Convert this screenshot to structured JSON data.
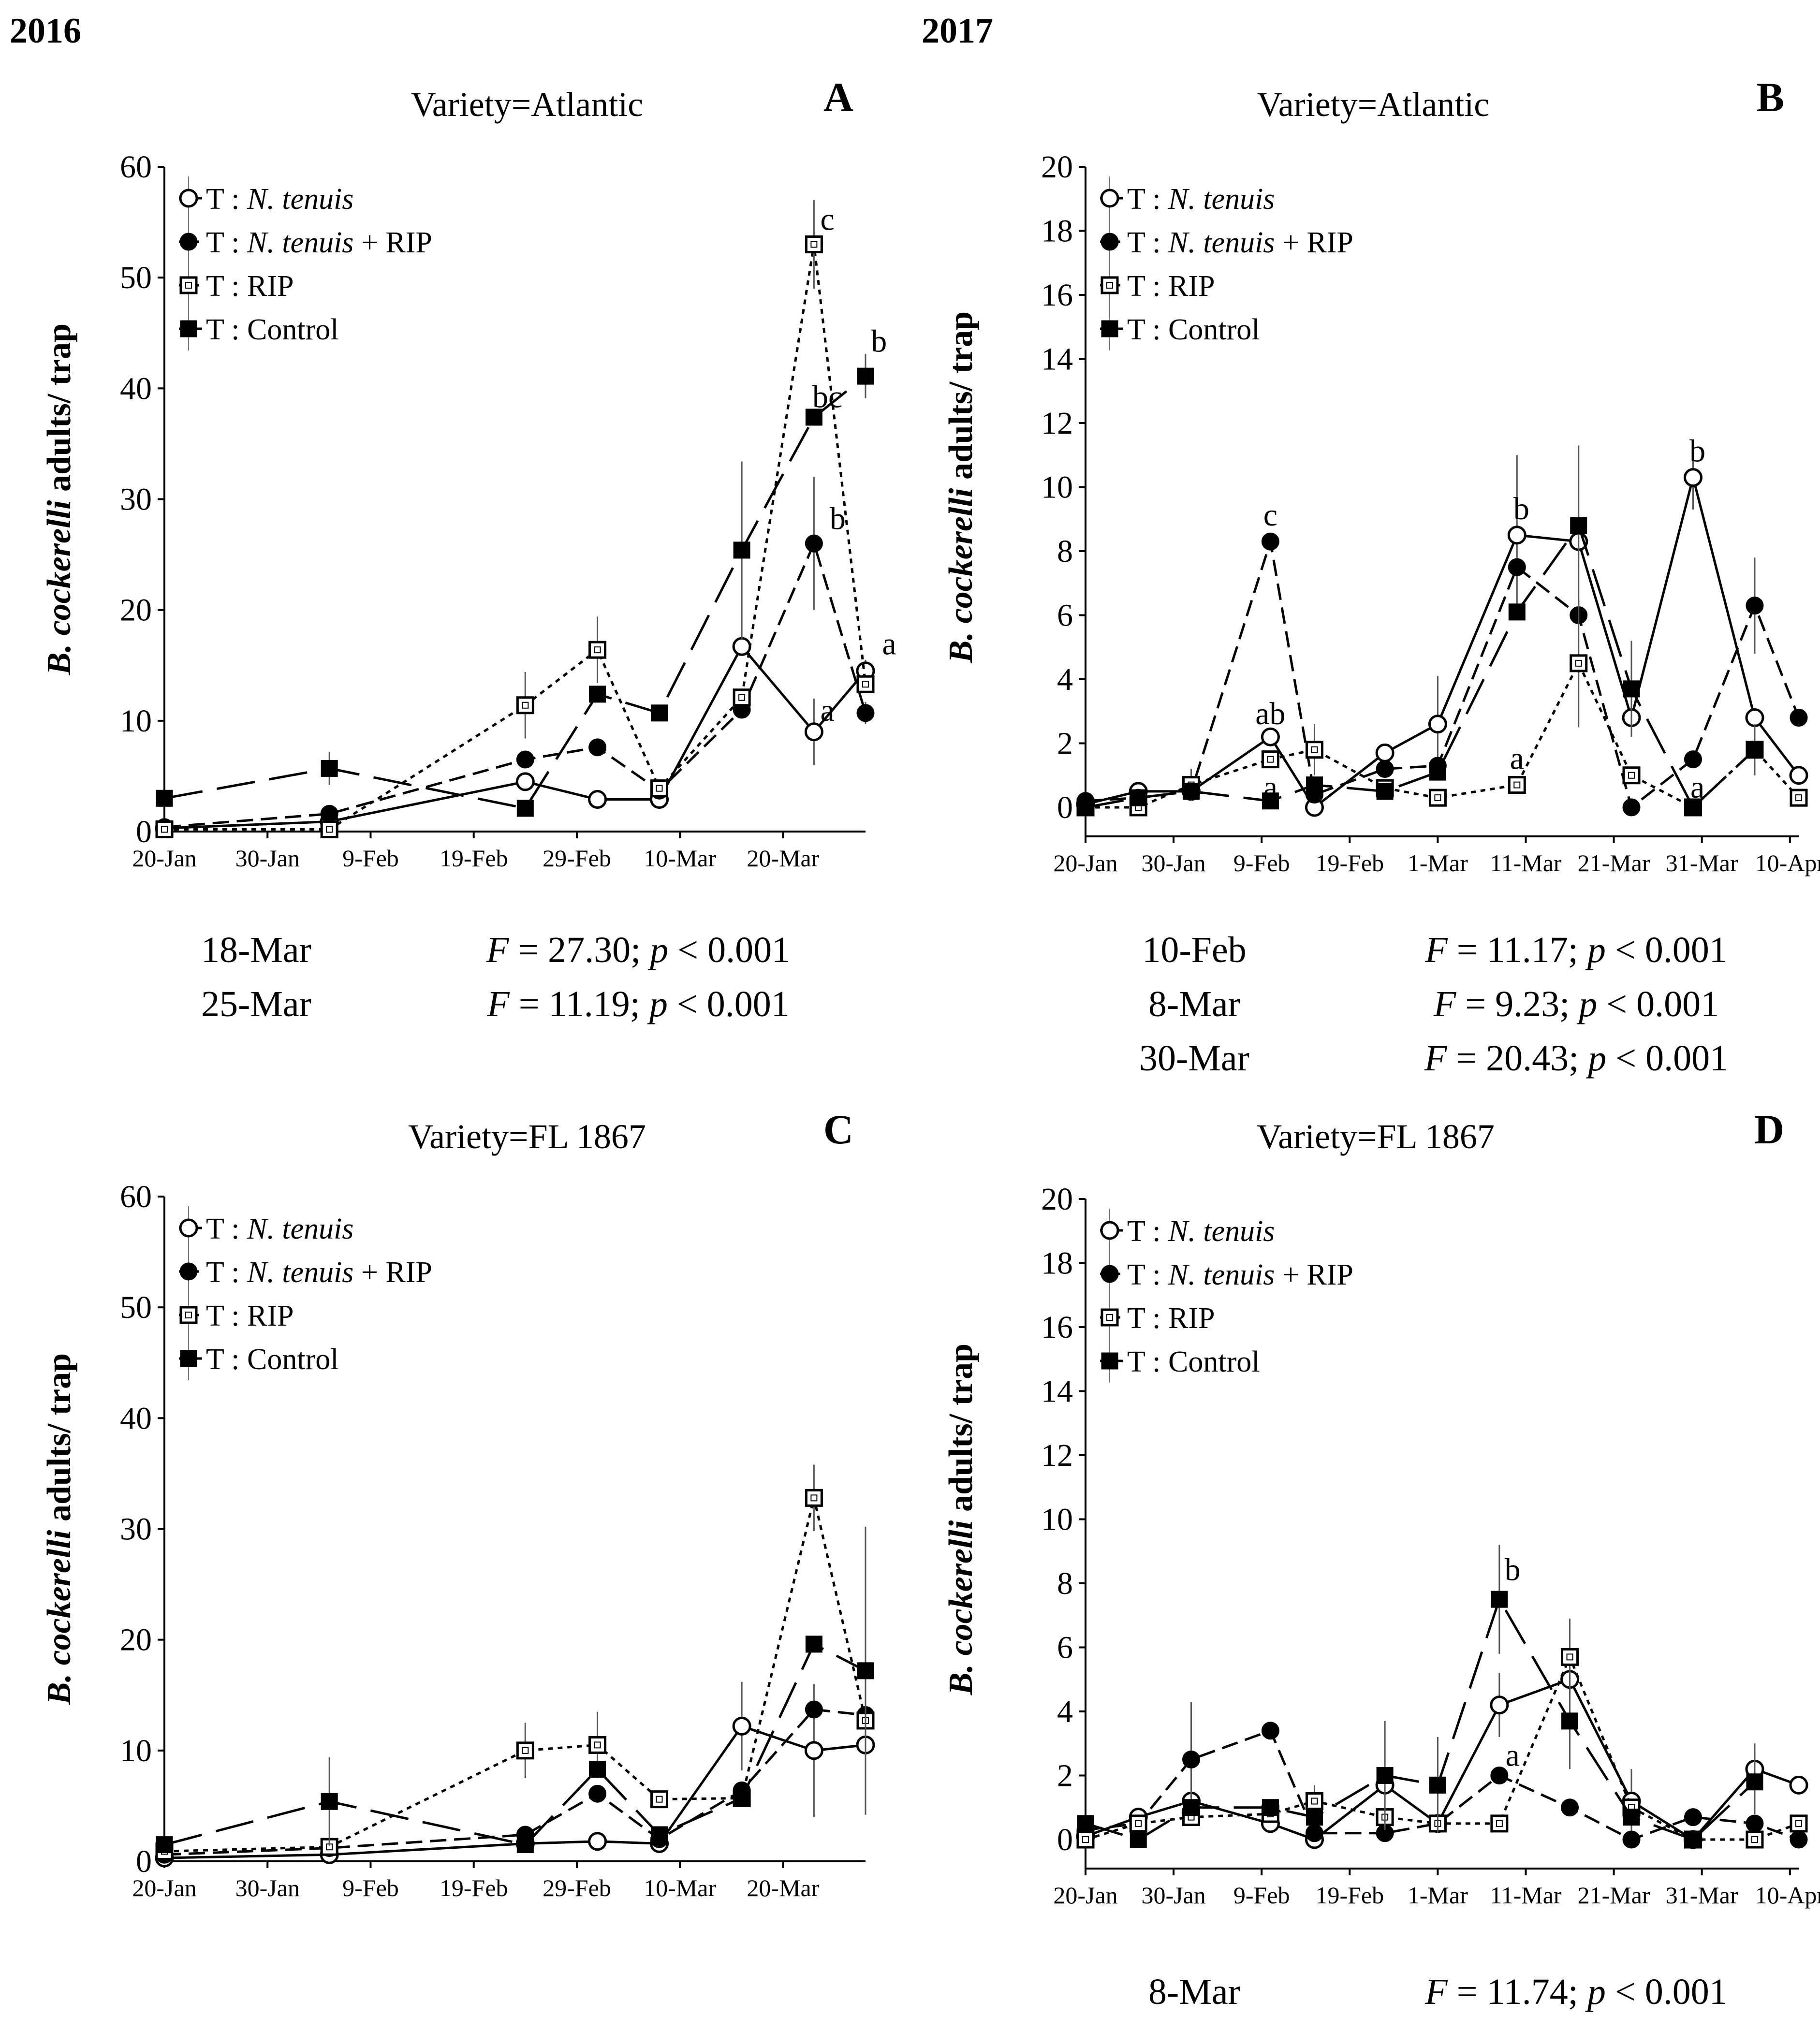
{
  "years": [
    "2016",
    "2017"
  ],
  "y_axis_label": {
    "italic": "B. cockerelli",
    "rest": " adults/ trap"
  },
  "legend": {
    "prefix": "T",
    "entries": [
      {
        "label": "N. tenuis",
        "suffix": ""
      },
      {
        "label": "N. tenuis",
        "suffix": " + RIP"
      },
      {
        "label": "",
        "suffix": "RIP"
      },
      {
        "label": "",
        "suffix": "Control"
      }
    ]
  },
  "chart_data": [
    {
      "panel": "A",
      "type": "line",
      "title": "Variety=Atlantic",
      "year": "2016",
      "ylim": [
        0,
        60
      ],
      "yticks": [
        0,
        10,
        20,
        30,
        40,
        50,
        60
      ],
      "xlim": [
        0,
        68
      ],
      "xticks": [
        {
          "x": 0,
          "label": "20-Jan"
        },
        {
          "x": 10,
          "label": "30-Jan"
        },
        {
          "x": 20,
          "label": "9-Feb"
        },
        {
          "x": 30,
          "label": "19-Feb"
        },
        {
          "x": 40,
          "label": "29-Feb"
        },
        {
          "x": 50,
          "label": "10-Mar"
        },
        {
          "x": 60,
          "label": "20-Mar"
        }
      ],
      "series": [
        {
          "name": "T: N. tenuis",
          "style": "open-circle",
          "x": [
            0,
            16,
            35,
            42,
            48,
            56,
            63,
            68
          ],
          "y": [
            0.3,
            0.9,
            4.5,
            2.9,
            2.9,
            16.7,
            9.0,
            14.5
          ],
          "err": [
            0,
            0,
            0,
            0,
            0,
            0,
            3,
            1
          ]
        },
        {
          "name": "T: N. tenuis + RIP",
          "style": "filled-circle",
          "x": [
            0,
            16,
            35,
            42,
            48,
            56,
            63,
            68
          ],
          "y": [
            0.4,
            1.6,
            6.5,
            7.6,
            3.7,
            11.0,
            26.0,
            10.7
          ],
          "err": [
            0,
            0,
            0,
            0,
            0,
            0,
            6,
            1
          ]
        },
        {
          "name": "T: RIP",
          "style": "open-square",
          "x": [
            0,
            16,
            35,
            42,
            48,
            56,
            63,
            68
          ],
          "y": [
            0.2,
            0.2,
            11.4,
            16.4,
            3.9,
            12.1,
            53.0,
            13.3
          ],
          "err": [
            0,
            0,
            3,
            3,
            0,
            0,
            4,
            0
          ]
        },
        {
          "name": "T: Control",
          "style": "filled-square",
          "x": [
            0,
            16,
            35,
            42,
            48,
            56,
            63,
            68
          ],
          "y": [
            3.0,
            5.7,
            2.1,
            12.4,
            10.7,
            25.4,
            37.4,
            41.1
          ],
          "err": [
            0,
            1.5,
            0,
            0,
            0,
            8,
            0,
            2
          ]
        }
      ],
      "annotations": [
        {
          "text": "c",
          "x": 64.3,
          "y": 54.3
        },
        {
          "text": "b",
          "x": 69.3,
          "y": 43.3
        },
        {
          "text": "bc",
          "x": 64.3,
          "y": 38.3
        },
        {
          "text": "b",
          "x": 65.3,
          "y": 27.3
        },
        {
          "text": "a",
          "x": 70.3,
          "y": 16.0
        },
        {
          "text": "a",
          "x": 64.3,
          "y": 10.0
        }
      ],
      "stats": [
        {
          "date": "18-Mar",
          "F": "27.30",
          "p": "0.001"
        },
        {
          "date": "25-Mar",
          "F": "11.19",
          "p": "0.001"
        }
      ]
    },
    {
      "panel": "B",
      "type": "line",
      "title": "Variety=Atlantic",
      "year": "2017",
      "ylim": [
        0,
        20
      ],
      "yticks": [
        0,
        2,
        4,
        6,
        8,
        10,
        12,
        14,
        16,
        18,
        20
      ],
      "xlim": [
        0,
        81
      ],
      "xticks": [
        {
          "x": 0,
          "label": "20-Jan"
        },
        {
          "x": 10,
          "label": "30-Jan"
        },
        {
          "x": 20,
          "label": "9-Feb"
        },
        {
          "x": 30,
          "label": "19-Feb"
        },
        {
          "x": 40,
          "label": "1-Mar"
        },
        {
          "x": 50,
          "label": "11-Mar"
        },
        {
          "x": 60,
          "label": "21-Mar"
        },
        {
          "x": 70,
          "label": "31-Mar"
        },
        {
          "x": 80,
          "label": "10-Apr"
        }
      ],
      "series": [
        {
          "name": "T: N. tenuis",
          "style": "open-circle",
          "x": [
            0,
            6,
            12,
            21,
            26,
            34,
            40,
            49,
            56,
            62,
            69,
            76,
            81
          ],
          "y": [
            0.1,
            0.5,
            0.5,
            2.2,
            0.0,
            1.7,
            2.6,
            8.5,
            8.3,
            2.8,
            10.3,
            2.8,
            1.0
          ],
          "err": [
            0,
            0,
            0,
            0,
            0,
            0,
            1.5,
            2.5,
            0,
            0,
            1,
            0,
            0
          ]
        },
        {
          "name": "T: N. tenuis + RIP",
          "style": "filled-circle",
          "x": [
            0,
            6,
            12,
            21,
            26,
            34,
            40,
            49,
            56,
            62,
            69,
            76,
            81
          ],
          "y": [
            0.2,
            0.3,
            0.5,
            8.3,
            0.4,
            1.2,
            1.3,
            7.5,
            6.0,
            0.0,
            1.5,
            6.3,
            2.8
          ],
          "err": [
            0,
            0,
            0,
            0,
            0,
            0,
            0,
            0,
            0,
            0,
            0,
            1.5,
            0
          ]
        },
        {
          "name": "T: RIP",
          "style": "open-square",
          "x": [
            0,
            6,
            12,
            21,
            26,
            34,
            40,
            49,
            56,
            62,
            69,
            76,
            81
          ],
          "y": [
            0.0,
            0.0,
            0.7,
            1.5,
            1.8,
            0.6,
            0.3,
            0.7,
            4.5,
            1.0,
            0.0,
            1.8,
            0.3
          ],
          "err": [
            0,
            0,
            0.5,
            0,
            0.8,
            0,
            0,
            0,
            2,
            0,
            0,
            0.8,
            0
          ]
        },
        {
          "name": "T: Control",
          "style": "filled-square",
          "x": [
            0,
            6,
            12,
            21,
            26,
            34,
            40,
            49,
            56,
            62,
            69,
            76
          ],
          "y": [
            0.0,
            0.3,
            0.5,
            0.2,
            0.7,
            0.5,
            1.1,
            6.1,
            8.8,
            3.7,
            0.0,
            1.8
          ],
          "err": [
            0,
            0,
            0,
            0,
            0,
            0,
            0,
            0,
            2.5,
            1.5,
            0,
            0
          ]
        }
      ],
      "annotations": [
        {
          "text": "c",
          "x": 21,
          "y": 8.8
        },
        {
          "text": "ab",
          "x": 21,
          "y": 2.6
        },
        {
          "text": "a",
          "x": 21,
          "y": 0.3
        },
        {
          "text": "b",
          "x": 49.5,
          "y": 9.0
        },
        {
          "text": "a",
          "x": 49,
          "y": 1.2
        },
        {
          "text": "b",
          "x": 69.5,
          "y": 10.8
        },
        {
          "text": "a",
          "x": 69.5,
          "y": 0.3
        }
      ],
      "stats": [
        {
          "date": "10-Feb",
          "F": "11.17",
          "p": "0.001"
        },
        {
          "date": "8-Mar",
          "F": "9.23",
          "p": "0.001"
        },
        {
          "date": "30-Mar",
          "F": "20.43",
          "p": "0.001"
        }
      ]
    },
    {
      "panel": "C",
      "type": "line",
      "title": "Variety=FL 1867",
      "year": "2016",
      "ylim": [
        0,
        60
      ],
      "yticks": [
        0,
        10,
        20,
        30,
        40,
        50,
        60
      ],
      "xlim": [
        0,
        68
      ],
      "xticks": [
        {
          "x": 0,
          "label": "20-Jan"
        },
        {
          "x": 10,
          "label": "30-Jan"
        },
        {
          "x": 20,
          "label": "9-Feb"
        },
        {
          "x": 30,
          "label": "19-Feb"
        },
        {
          "x": 40,
          "label": "29-Feb"
        },
        {
          "x": 50,
          "label": "10-Mar"
        },
        {
          "x": 60,
          "label": "20-Mar"
        }
      ],
      "series": [
        {
          "name": "T: N. tenuis",
          "style": "open-circle",
          "x": [
            0,
            16,
            35,
            42,
            48,
            56,
            63,
            68
          ],
          "y": [
            0.3,
            0.6,
            1.6,
            1.8,
            1.6,
            12.2,
            10.0,
            10.5
          ],
          "err": [
            0,
            0,
            0,
            0,
            0,
            4,
            6,
            6
          ]
        },
        {
          "name": "T: N. tenuis + RIP",
          "style": "filled-circle",
          "x": [
            0,
            16,
            35,
            42,
            48,
            56,
            63,
            68
          ],
          "y": [
            0.6,
            1.2,
            2.4,
            6.1,
            2.0,
            6.4,
            13.7,
            13.2
          ],
          "err": [
            0,
            0,
            0,
            0,
            0,
            0,
            0,
            0
          ]
        },
        {
          "name": "T: RIP",
          "style": "open-square",
          "x": [
            0,
            16,
            35,
            42,
            48,
            56,
            63,
            68
          ],
          "y": [
            0.9,
            1.3,
            10.0,
            10.5,
            5.6,
            5.7,
            32.8,
            12.7
          ],
          "err": [
            0,
            0,
            2.5,
            3,
            0,
            0,
            3,
            0
          ]
        },
        {
          "name": "T: Control",
          "style": "filled-square",
          "x": [
            0,
            16,
            35,
            42,
            48,
            56,
            63,
            68
          ],
          "y": [
            1.5,
            5.4,
            1.5,
            8.3,
            2.4,
            5.7,
            19.6,
            17.2
          ],
          "err": [
            0,
            4,
            0,
            0,
            0,
            0,
            0,
            13
          ]
        }
      ],
      "annotations": [],
      "stats": []
    },
    {
      "panel": "D",
      "type": "line",
      "title": "Variety=FL 1867",
      "year": "2017",
      "ylim": [
        0,
        20
      ],
      "yticks": [
        0,
        2,
        4,
        6,
        8,
        10,
        12,
        14,
        16,
        18,
        20
      ],
      "xlim": [
        0,
        81
      ],
      "xticks": [
        {
          "x": 0,
          "label": "20-Jan"
        },
        {
          "x": 10,
          "label": "30-Jan"
        },
        {
          "x": 20,
          "label": "9-Feb"
        },
        {
          "x": 30,
          "label": "19-Feb"
        },
        {
          "x": 40,
          "label": "1-Mar"
        },
        {
          "x": 50,
          "label": "11-Mar"
        },
        {
          "x": 60,
          "label": "21-Mar"
        },
        {
          "x": 70,
          "label": "31-Mar"
        },
        {
          "x": 80,
          "label": "10-Apr"
        }
      ],
      "series": [
        {
          "name": "T: N. tenuis",
          "style": "open-circle",
          "x": [
            0,
            6,
            12,
            21,
            26,
            34,
            40,
            47,
            55,
            62,
            69,
            76,
            81
          ],
          "y": [
            0.1,
            0.7,
            1.2,
            0.5,
            0.0,
            1.7,
            0.5,
            4.2,
            5.0,
            1.2,
            0.0,
            2.2,
            1.7
          ],
          "err": [
            0,
            0,
            0,
            0,
            0,
            0,
            0,
            1,
            0,
            1,
            0,
            0.8,
            0
          ]
        },
        {
          "name": "T: N. tenuis + RIP",
          "style": "filled-circle",
          "x": [
            0,
            6,
            12,
            21,
            26,
            34,
            40,
            47,
            55,
            62,
            69,
            76,
            81
          ],
          "y": [
            0.3,
            0.5,
            2.5,
            3.4,
            0.2,
            0.2,
            0.5,
            2.0,
            1.0,
            0.0,
            0.7,
            0.5,
            0.0
          ],
          "err": [
            0,
            0,
            1.8,
            0,
            0,
            0,
            0,
            0,
            0,
            0,
            0,
            0,
            0
          ]
        },
        {
          "name": "T: RIP",
          "style": "open-square",
          "x": [
            0,
            6,
            12,
            21,
            26,
            34,
            40,
            47,
            55,
            62,
            69,
            76,
            81
          ],
          "y": [
            0.0,
            0.5,
            0.7,
            0.8,
            1.2,
            0.7,
            0.5,
            0.5,
            5.7,
            1.0,
            0.0,
            0.0,
            0.5
          ],
          "err": [
            0,
            0,
            0,
            0,
            0.5,
            0,
            0,
            0,
            1.2,
            0,
            0,
            0,
            0
          ]
        },
        {
          "name": "T: Control",
          "style": "filled-square",
          "x": [
            0,
            6,
            12,
            21,
            26,
            34,
            40,
            47,
            55,
            62,
            69,
            76
          ],
          "y": [
            0.5,
            0.0,
            1.0,
            1.0,
            0.7,
            2.0,
            1.7,
            7.5,
            3.7,
            0.7,
            0.0,
            1.8
          ],
          "err": [
            0,
            0,
            0,
            0,
            0,
            1.7,
            1.5,
            1.7,
            1.5,
            0,
            0,
            1
          ]
        }
      ],
      "annotations": [
        {
          "text": "b",
          "x": 48.5,
          "y": 8.1
        },
        {
          "text": "a",
          "x": 48.5,
          "y": 2.3
        }
      ],
      "stats": [
        {
          "date": "8-Mar",
          "F": "11.74",
          "p": "0.001"
        }
      ]
    }
  ]
}
